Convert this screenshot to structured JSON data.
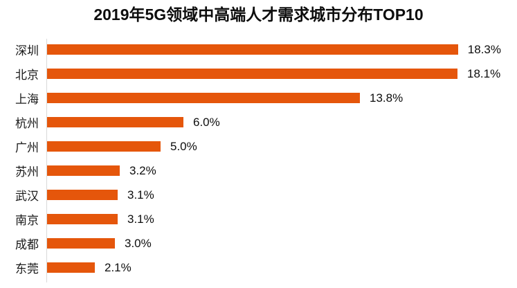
{
  "title": "2019年5G领域中高端人才需求城市分布TOP10",
  "chart_data": {
    "type": "bar",
    "orientation": "horizontal",
    "title": "2019年5G领域中高端人才需求城市分布TOP10",
    "categories": [
      "深圳",
      "北京",
      "上海",
      "杭州",
      "广州",
      "苏州",
      "武汉",
      "南京",
      "成都",
      "东莞"
    ],
    "values": [
      18.3,
      18.1,
      13.8,
      6.0,
      5.0,
      3.2,
      3.1,
      3.1,
      3.0,
      2.1
    ],
    "value_labels": [
      "18.3%",
      "18.1%",
      "13.8%",
      "6.0%",
      "5.0%",
      "3.2%",
      "3.1%",
      "3.1%",
      "3.0%",
      "2.1%"
    ],
    "xlabel": "",
    "ylabel": "",
    "xlim": [
      0,
      20
    ],
    "grid": false,
    "legend_position": "none",
    "bar_color": "#e5560b",
    "axis_line_color": "#d9d9d9",
    "label_color": "#0d0d0d"
  }
}
